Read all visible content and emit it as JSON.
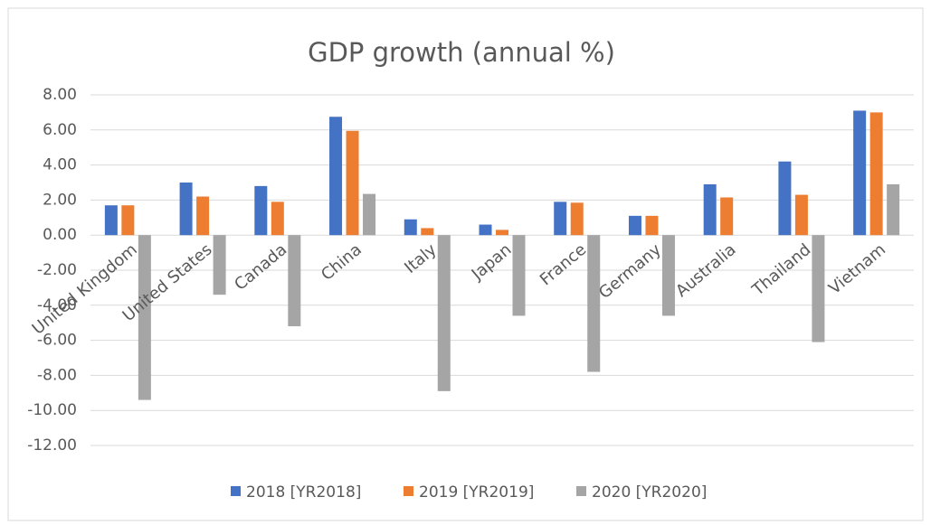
{
  "chart_data": {
    "type": "bar",
    "title": "GDP growth (annual %)",
    "categories": [
      "United Kingdom",
      "United States",
      "Canada",
      "China",
      "Italy",
      "Japan",
      "France",
      "Germany",
      "Australia",
      "Thailand",
      "Vietnam"
    ],
    "series": [
      {
        "name": "2018 [YR2018]",
        "color": "#4472c4",
        "values": [
          1.7,
          3.0,
          2.8,
          6.75,
          0.9,
          0.6,
          1.9,
          1.1,
          2.9,
          4.2,
          7.1
        ]
      },
      {
        "name": "2019 [YR2019]",
        "color": "#ed7d31",
        "values": [
          1.7,
          2.2,
          1.9,
          5.95,
          0.4,
          0.3,
          1.85,
          1.1,
          2.15,
          2.3,
          7.0
        ]
      },
      {
        "name": "2020 [YR2020]",
        "color": "#a5a5a5",
        "values": [
          -9.4,
          -3.4,
          -5.2,
          2.35,
          -8.9,
          -4.6,
          -7.8,
          -4.6,
          0,
          -6.1,
          2.9
        ]
      }
    ],
    "ylim": [
      -12,
      8
    ],
    "yticks": [
      {
        "value": -12,
        "label": "-12.00"
      },
      {
        "value": -10,
        "label": "-10.00"
      },
      {
        "value": -8,
        "label": "-8.00"
      },
      {
        "value": -6,
        "label": "-6.00"
      },
      {
        "value": -4,
        "label": "-4.00"
      },
      {
        "value": -2,
        "label": "-2.00"
      },
      {
        "value": 0,
        "label": "0.00"
      },
      {
        "value": 2,
        "label": "2.00"
      },
      {
        "value": 4,
        "label": "4.00"
      },
      {
        "value": 6,
        "label": "6.00"
      },
      {
        "value": 8,
        "label": "8.00"
      }
    ],
    "grid": true,
    "legend": "bottom"
  }
}
